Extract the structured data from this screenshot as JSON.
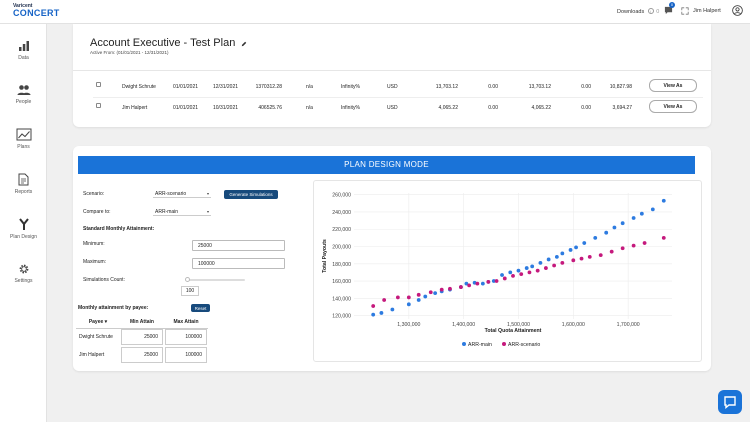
{
  "header": {
    "logo_top": "Varicent",
    "logo_main": "CONCERT",
    "downloads_label": "Downloads",
    "downloads_count": "0",
    "notif_count": "0",
    "user_name": "Jim Halpert"
  },
  "sidebar": {
    "items": [
      {
        "label": "Data",
        "icon": "bar-chart-icon"
      },
      {
        "label": "People",
        "icon": "people-icon"
      },
      {
        "label": "Plans",
        "icon": "line-chart-icon"
      },
      {
        "label": "Reports",
        "icon": "document-icon"
      },
      {
        "label": "Plan Design",
        "icon": "fork-icon"
      },
      {
        "label": "Settings",
        "icon": "gear-icon"
      }
    ]
  },
  "plan": {
    "title": "Account Executive - Test Plan",
    "active_from": "Active From: (01/01/2021 - 12/31/2021)",
    "rows": [
      {
        "name": "Dwight Schrute",
        "start": "01/01/2021",
        "end": "12/31/2021",
        "val1": "1370312.28",
        "na": "n/a",
        "pct": "Infinity%",
        "cur": "USD",
        "v2": "13,703.12",
        "v3": "0.00",
        "v4": "13,703.12",
        "v5": "0.00",
        "v6": "10,827.98",
        "btn": "View As"
      },
      {
        "name": "Jim Halpert",
        "start": "01/01/2021",
        "end": "10/31/2021",
        "val1": "406525.76",
        "na": "n/a",
        "pct": "Infinity%",
        "cur": "USD",
        "v2": "4,065.22",
        "v3": "0.00",
        "v4": "4,065.22",
        "v5": "0.00",
        "v6": "3,694.27",
        "btn": "View As"
      }
    ]
  },
  "design": {
    "banner": "PLAN DESIGN MODE",
    "scenario_label": "Scenario:",
    "scenario_value": "ARR-scenario",
    "generate_btn": "Generate Simulations",
    "compare_label": "Compare to:",
    "compare_value": "ARR-main",
    "std_label": "Standard Monthly Attainment:",
    "min_label": "Minimum:",
    "min_value": "25000",
    "max_label": "Maximum:",
    "max_value": "100000",
    "sim_label": "Simulations Count:",
    "sim_value": "100",
    "monthly_label": "Monthly attainment by payee:",
    "reset_btn": "Reset",
    "table_headers": [
      "Payee ▾",
      "Min Attain",
      "Max Attain"
    ],
    "table_rows": [
      {
        "payee": "Dwight Schrute",
        "min": "25000",
        "max": "100000"
      },
      {
        "payee": "Jim Halpert",
        "min": "25000",
        "max": "100000"
      }
    ]
  },
  "chart_data": {
    "type": "scatter",
    "xlabel": "Total Quota Attainment",
    "ylabel": "Total Payouts",
    "xlim": [
      1200000,
      1780000
    ],
    "ylim": [
      116000,
      262000
    ],
    "x_ticks": [
      "1,300,000",
      "1,400,000",
      "1,500,000",
      "1,600,000",
      "1,700,000"
    ],
    "y_ticks": [
      "120,000",
      "140,000",
      "160,000",
      "180,000",
      "200,000",
      "220,000",
      "240,000",
      "260,000"
    ],
    "legend_position": "bottom",
    "series": [
      {
        "name": "ARR-main",
        "color": "#2d7be0",
        "points": [
          [
            1235000,
            121000
          ],
          [
            1250000,
            123000
          ],
          [
            1270000,
            127000
          ],
          [
            1300000,
            133000
          ],
          [
            1318000,
            138000
          ],
          [
            1330000,
            142000
          ],
          [
            1348000,
            146000
          ],
          [
            1360000,
            148000
          ],
          [
            1375000,
            150000
          ],
          [
            1395000,
            153000
          ],
          [
            1405000,
            157000
          ],
          [
            1420000,
            158000
          ],
          [
            1435000,
            157000
          ],
          [
            1445000,
            159000
          ],
          [
            1455000,
            160000
          ],
          [
            1470000,
            167000
          ],
          [
            1485000,
            170000
          ],
          [
            1500000,
            172000
          ],
          [
            1515000,
            175000
          ],
          [
            1525000,
            177000
          ],
          [
            1540000,
            181000
          ],
          [
            1555000,
            185000
          ],
          [
            1570000,
            188000
          ],
          [
            1580000,
            192000
          ],
          [
            1595000,
            196000
          ],
          [
            1605000,
            199000
          ],
          [
            1620000,
            204000
          ],
          [
            1640000,
            210000
          ],
          [
            1660000,
            216000
          ],
          [
            1675000,
            222000
          ],
          [
            1690000,
            227000
          ],
          [
            1710000,
            233000
          ],
          [
            1725000,
            238000
          ],
          [
            1745000,
            243000
          ],
          [
            1765000,
            253000
          ]
        ]
      },
      {
        "name": "ARR-scenario",
        "color": "#c5197d",
        "points": [
          [
            1235000,
            131000
          ],
          [
            1255000,
            138000
          ],
          [
            1280000,
            141000
          ],
          [
            1300000,
            141000
          ],
          [
            1318000,
            144000
          ],
          [
            1340000,
            147000
          ],
          [
            1360000,
            150000
          ],
          [
            1375000,
            151000
          ],
          [
            1395000,
            153000
          ],
          [
            1410000,
            155000
          ],
          [
            1425000,
            157000
          ],
          [
            1445000,
            159000
          ],
          [
            1460000,
            160000
          ],
          [
            1475000,
            163000
          ],
          [
            1490000,
            166000
          ],
          [
            1505000,
            168000
          ],
          [
            1520000,
            170000
          ],
          [
            1535000,
            172000
          ],
          [
            1550000,
            175000
          ],
          [
            1565000,
            178000
          ],
          [
            1580000,
            181000
          ],
          [
            1600000,
            184000
          ],
          [
            1615000,
            186000
          ],
          [
            1630000,
            188000
          ],
          [
            1650000,
            190000
          ],
          [
            1670000,
            194000
          ],
          [
            1690000,
            198000
          ],
          [
            1710000,
            201000
          ],
          [
            1730000,
            204000
          ],
          [
            1765000,
            210000
          ]
        ]
      }
    ]
  }
}
